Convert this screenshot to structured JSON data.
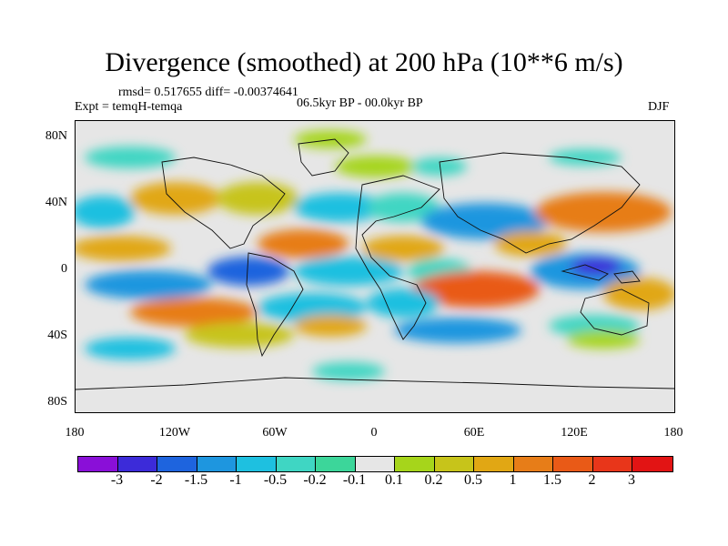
{
  "title": "Divergence (smoothed) at 200 hPa (10**6 m/s)",
  "stats": "rmsd= 0.517655  diff= -0.00374641",
  "experiment": "Expt = temqH-temqa",
  "period": "06.5kyr BP - 00.0kyr BP",
  "season": "DJF",
  "axes": {
    "y_ticks": [
      "80N",
      "40N",
      "0",
      "40S",
      "80S"
    ],
    "x_ticks": [
      "180",
      "120W",
      "60W",
      "0",
      "60E",
      "120E",
      "180"
    ]
  },
  "colorbar": {
    "labels": [
      "-3",
      "-2",
      "-1.5",
      "-1",
      "-0.5",
      "-0.2",
      "-0.1",
      "0.1",
      "0.2",
      "0.5",
      "1",
      "1.5",
      "2",
      "3"
    ],
    "colors": [
      "#8a0fd8",
      "#3c2bd9",
      "#1e64de",
      "#1e96df",
      "#1ec0e0",
      "#3fd6c3",
      "#3cd69a",
      "#e6e6e6",
      "#a6d51b",
      "#c7c41a",
      "#e1a714",
      "#e77d18",
      "#e95a17",
      "#e8361a",
      "#e21414"
    ]
  },
  "colors": {
    "neutral": "#e6e6e6"
  }
}
